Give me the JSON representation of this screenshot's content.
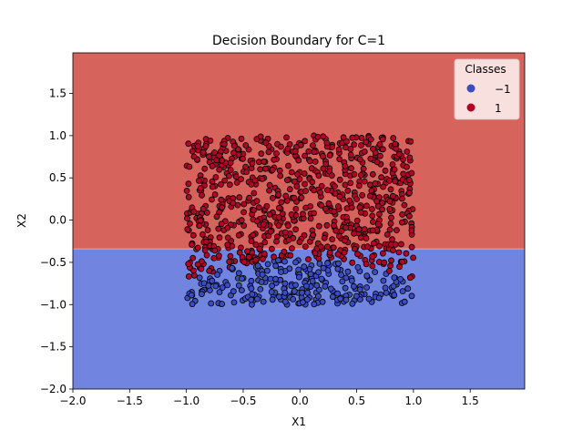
{
  "chart_data": {
    "type": "scatter",
    "title": "Decision Boundary for C=1",
    "xlabel": "X1",
    "ylabel": "X2",
    "xlim": [
      -2.0,
      1.98
    ],
    "ylim": [
      -2.0,
      1.98
    ],
    "x_ticks": [
      -2.0,
      -1.5,
      -1.0,
      -0.5,
      0.0,
      0.5,
      1.0,
      1.5
    ],
    "x_tick_labels": [
      "−2.0",
      "−1.5",
      "−1.0",
      "−0.5",
      "0.0",
      "0.5",
      "1.0",
      "1.5"
    ],
    "y_ticks": [
      -2.0,
      -1.5,
      -1.0,
      -0.5,
      0.0,
      0.5,
      1.0,
      1.5
    ],
    "y_tick_labels": [
      "−2.0",
      "−1.5",
      "−1.0",
      "−0.5",
      "0.0",
      "0.5",
      "1.0",
      "1.5"
    ],
    "grid": false,
    "decision_boundary": {
      "type": "horizontal_line",
      "x2": -0.34,
      "region_above_class": 1,
      "region_below_class": -1,
      "region_above_color": "#d6645d",
      "region_below_color": "#7084e0"
    },
    "legend": {
      "title": "Classes",
      "placement": "top-right",
      "entries": [
        {
          "label": "−1",
          "class": -1,
          "color": "#3b4cc0"
        },
        {
          "label": "1",
          "class": 1,
          "color": "#b40426"
        }
      ]
    },
    "marker_edge_color": "#000000",
    "point_generation": {
      "n_points": 1000,
      "x_range": [
        -1.0,
        1.0
      ],
      "y_range": [
        -1.0,
        1.0
      ],
      "label_rule": "class 1 if x2 > -0.55 + 0.25 * (0.35 - x1^2) else class -1"
    }
  }
}
